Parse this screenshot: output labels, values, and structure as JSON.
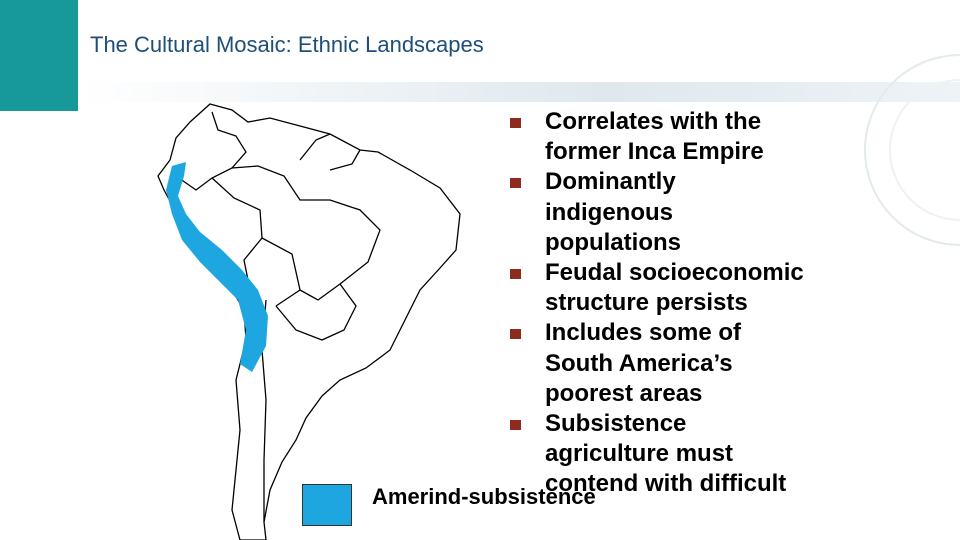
{
  "title": "The Cultural Mosaic: Ethnic Landscapes",
  "bullets": [
    "Correlates with the former Inca Empire",
    "Dominantly indigenous populations",
    "Feudal socioeconomic structure persists",
    "Includes some of South America’s poorest areas",
    "Subsistence agriculture must contend with difficult"
  ],
  "legend": {
    "label": "Amerind-subsistence"
  }
}
